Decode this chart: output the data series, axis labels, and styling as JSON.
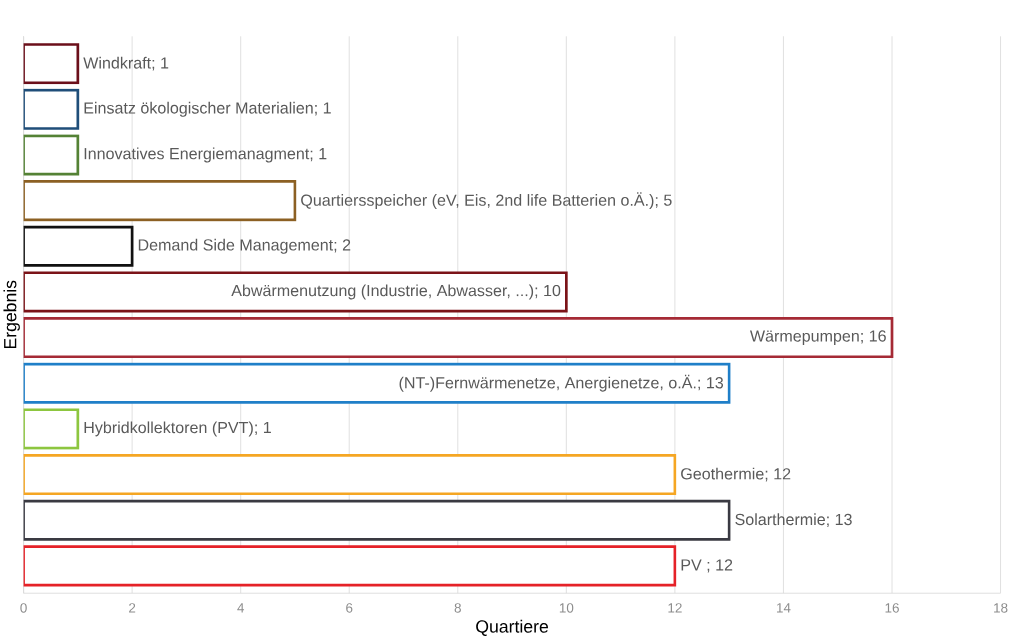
{
  "chart_data": {
    "type": "bar",
    "orientation": "horizontal",
    "xlabel": "Quartiere",
    "ylabel": "Ergebnis",
    "categories": [
      null,
      null,
      null,
      null,
      null,
      null,
      null,
      null,
      null,
      null,
      null,
      null
    ],
    "values": [
      1,
      1,
      1,
      5,
      2,
      10,
      16,
      13,
      1,
      12,
      13,
      12
    ],
    "value_labels": [
      "Windkraft; 1",
      "Einsatz ökologischer Materialien; 1",
      "Innovatives Energiemanagment; 1",
      "Quartiersspeicher (eV, Eis, 2nd life Batterien o.Ä.); 5",
      "Demand Side Management; 2",
      "Abwärmenutzung (Industrie, Abwasser, ...); 10",
      "Wärmepumpen; 16",
      "(NT-)Fernwärmenetze, Anergienetze, o.Ä.; 13",
      "Hybridkollektoren (PVT); 1",
      "Geothermie; 12",
      "Solarthermie; 13",
      "PV ; 12"
    ],
    "colors": [
      "#6b0f1a",
      "#1f4e79",
      "#548235",
      "#8c6023",
      "#111111",
      "#7b1318",
      "#a52a35",
      "#1f7fc8",
      "#8dc63f",
      "#f5a623",
      "#3a3a42",
      "#e52228"
    ],
    "xlim": [
      0,
      18
    ],
    "xticks": [
      0,
      2,
      4,
      6,
      8,
      10,
      12,
      14,
      16,
      18
    ],
    "grid": "x"
  }
}
